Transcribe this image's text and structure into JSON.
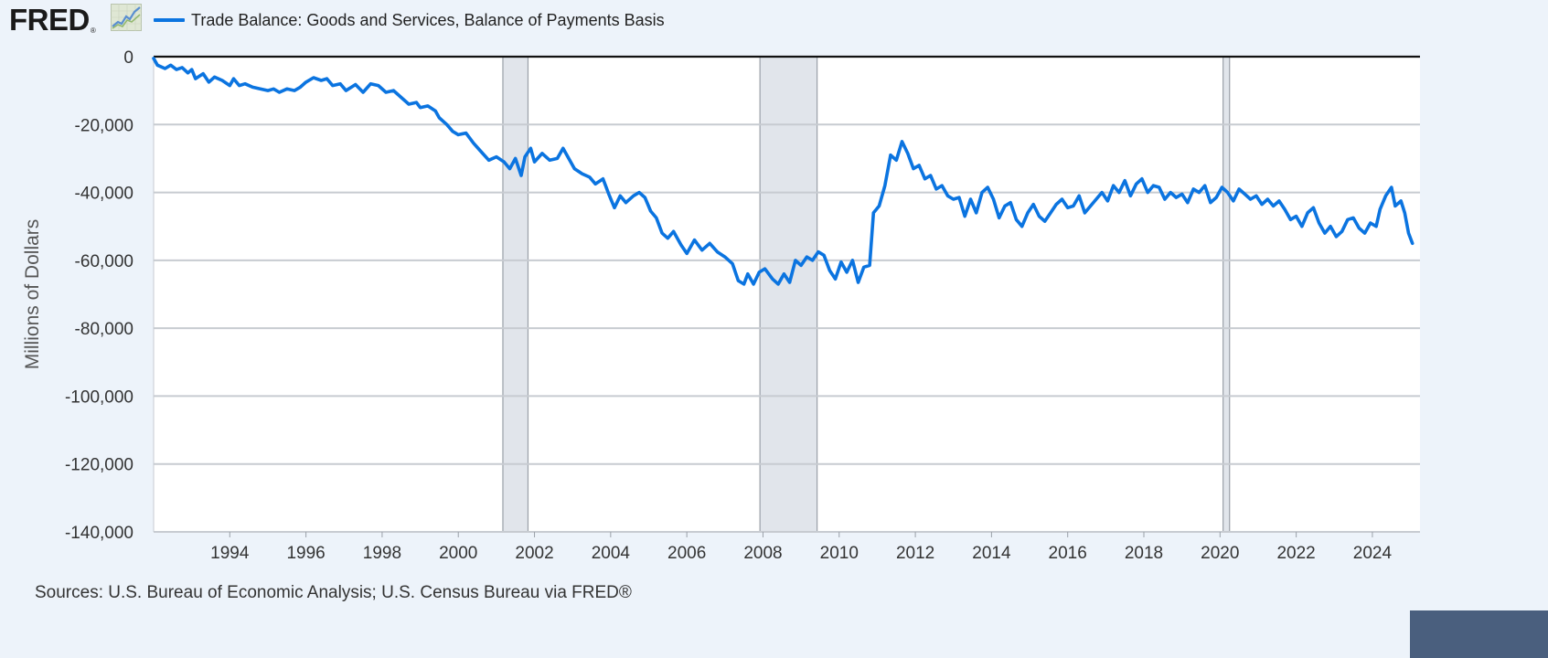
{
  "logo": {
    "text": "FRED",
    "reg": "®",
    "icon": "line-graph-icon"
  },
  "legend": {
    "label": "Trade Balance: Goods and Services, Balance of Payments Basis",
    "color": "#0b74e0"
  },
  "footer": {
    "sources": "Sources: U.S. Bureau of Economic Analysis; U.S. Census Bureau via FRED®"
  },
  "colors": {
    "background": "#edf3fa",
    "plot_background": "#ffffff",
    "series": "#0b74e0",
    "recession": "#e1e5eb",
    "grid": "#c7cbd1",
    "corner_box": "#4a5f7e"
  },
  "chart_data": {
    "type": "line",
    "ylabel": "Millions of Dollars",
    "xlim": [
      1992.0,
      2025.25
    ],
    "ylim": [
      -140000,
      0
    ],
    "x_ticks": [
      1994,
      1996,
      1998,
      2000,
      2002,
      2004,
      2006,
      2008,
      2010,
      2012,
      2014,
      2016,
      2018,
      2020,
      2022,
      2024
    ],
    "y_ticks": [
      0,
      -20000,
      -40000,
      -60000,
      -80000,
      -100000,
      -120000,
      -140000
    ],
    "y_tick_labels": [
      "0",
      "-20,000",
      "-40,000",
      "-60,000",
      "-80,000",
      "-100,000",
      "-120,000",
      "-140,000"
    ],
    "grid": true,
    "legend_position": "top-left",
    "recessions": [
      [
        2001.17,
        2001.83
      ],
      [
        2007.92,
        2009.42
      ],
      [
        2020.08,
        2020.25
      ]
    ],
    "series": [
      {
        "name": "Trade Balance: Goods and Services, Balance of Payments Basis",
        "points": [
          [
            1992.0,
            -500
          ],
          [
            1992.1,
            -2500
          ],
          [
            1992.3,
            -3500
          ],
          [
            1992.45,
            -2500
          ],
          [
            1992.6,
            -3800
          ],
          [
            1992.75,
            -3200
          ],
          [
            1992.9,
            -4800
          ],
          [
            1993.0,
            -3800
          ],
          [
            1993.1,
            -6500
          ],
          [
            1993.3,
            -5000
          ],
          [
            1993.45,
            -7500
          ],
          [
            1993.6,
            -6000
          ],
          [
            1993.8,
            -7000
          ],
          [
            1994.0,
            -8500
          ],
          [
            1994.1,
            -6500
          ],
          [
            1994.25,
            -8500
          ],
          [
            1994.4,
            -8000
          ],
          [
            1994.6,
            -9000
          ],
          [
            1994.8,
            -9500
          ],
          [
            1995.0,
            -10000
          ],
          [
            1995.15,
            -9500
          ],
          [
            1995.3,
            -10500
          ],
          [
            1995.5,
            -9500
          ],
          [
            1995.7,
            -10000
          ],
          [
            1995.85,
            -9000
          ],
          [
            1996.0,
            -7500
          ],
          [
            1996.2,
            -6200
          ],
          [
            1996.4,
            -7000
          ],
          [
            1996.55,
            -6500
          ],
          [
            1996.7,
            -8500
          ],
          [
            1996.9,
            -8000
          ],
          [
            1997.05,
            -10000
          ],
          [
            1997.3,
            -8200
          ],
          [
            1997.5,
            -10500
          ],
          [
            1997.7,
            -8000
          ],
          [
            1997.9,
            -8500
          ],
          [
            1998.1,
            -10500
          ],
          [
            1998.3,
            -10000
          ],
          [
            1998.5,
            -12000
          ],
          [
            1998.7,
            -14000
          ],
          [
            1998.9,
            -13500
          ],
          [
            1999.0,
            -15000
          ],
          [
            1999.2,
            -14500
          ],
          [
            1999.4,
            -16000
          ],
          [
            1999.5,
            -18000
          ],
          [
            1999.7,
            -20000
          ],
          [
            1999.85,
            -22000
          ],
          [
            2000.0,
            -23000
          ],
          [
            2000.2,
            -22500
          ],
          [
            2000.4,
            -25500
          ],
          [
            2000.6,
            -28000
          ],
          [
            2000.8,
            -30500
          ],
          [
            2001.0,
            -29500
          ],
          [
            2001.2,
            -31000
          ],
          [
            2001.35,
            -33000
          ],
          [
            2001.5,
            -30000
          ],
          [
            2001.65,
            -35000
          ],
          [
            2001.75,
            -29500
          ],
          [
            2001.9,
            -27000
          ],
          [
            2002.0,
            -31000
          ],
          [
            2002.2,
            -28500
          ],
          [
            2002.4,
            -30500
          ],
          [
            2002.6,
            -30000
          ],
          [
            2002.75,
            -27000
          ],
          [
            2002.9,
            -30000
          ],
          [
            2003.05,
            -33000
          ],
          [
            2003.25,
            -34500
          ],
          [
            2003.45,
            -35500
          ],
          [
            2003.6,
            -37500
          ],
          [
            2003.8,
            -36000
          ],
          [
            2003.95,
            -40500
          ],
          [
            2004.1,
            -44500
          ],
          [
            2004.25,
            -41000
          ],
          [
            2004.4,
            -43000
          ],
          [
            2004.6,
            -41000
          ],
          [
            2004.75,
            -40000
          ],
          [
            2004.9,
            -41500
          ],
          [
            2005.05,
            -45500
          ],
          [
            2005.2,
            -47500
          ],
          [
            2005.35,
            -52000
          ],
          [
            2005.5,
            -53500
          ],
          [
            2005.65,
            -51500
          ],
          [
            2005.85,
            -55500
          ],
          [
            2006.0,
            -58000
          ],
          [
            2006.2,
            -54000
          ],
          [
            2006.4,
            -57000
          ],
          [
            2006.6,
            -55000
          ],
          [
            2006.8,
            -57500
          ],
          [
            2007.0,
            -59000
          ],
          [
            2007.2,
            -61000
          ],
          [
            2007.35,
            -66000
          ],
          [
            2007.5,
            -67000
          ],
          [
            2007.6,
            -64000
          ],
          [
            2007.75,
            -67000
          ],
          [
            2007.9,
            -63500
          ],
          [
            2008.05,
            -62500
          ],
          [
            2008.25,
            -65500
          ],
          [
            2008.4,
            -67000
          ],
          [
            2008.55,
            -64000
          ],
          [
            2008.7,
            -66500
          ],
          [
            2008.85,
            -60000
          ],
          [
            2009.0,
            -61500
          ],
          [
            2009.15,
            -59000
          ],
          [
            2009.3,
            -60000
          ],
          [
            2009.45,
            -57500
          ],
          [
            2009.6,
            -58500
          ],
          [
            2009.75,
            -63000
          ],
          [
            2009.9,
            -65500
          ],
          [
            2010.05,
            -60500
          ],
          [
            2010.2,
            -63500
          ],
          [
            2010.35,
            -60000
          ],
          [
            2010.5,
            -66500
          ],
          [
            2010.65,
            -62000
          ],
          [
            2010.8,
            -61500
          ],
          [
            2010.9,
            -46000
          ],
          [
            2011.05,
            -44000
          ],
          [
            2011.2,
            -38000
          ],
          [
            2011.35,
            -29000
          ],
          [
            2011.5,
            -30500
          ],
          [
            2011.65,
            -25000
          ],
          [
            2011.8,
            -28500
          ],
          [
            2011.95,
            -33000
          ],
          [
            2012.1,
            -32000
          ],
          [
            2012.25,
            -36000
          ],
          [
            2012.4,
            -35000
          ],
          [
            2012.55,
            -39000
          ],
          [
            2012.7,
            -38000
          ],
          [
            2012.85,
            -41000
          ],
          [
            2013.0,
            -42000
          ],
          [
            2013.15,
            -41500
          ],
          [
            2013.3,
            -47000
          ],
          [
            2013.45,
            -42000
          ],
          [
            2013.6,
            -46000
          ],
          [
            2013.75,
            -40000
          ],
          [
            2013.9,
            -38500
          ],
          [
            2014.05,
            -42000
          ],
          [
            2014.2,
            -47500
          ],
          [
            2014.35,
            -44000
          ],
          [
            2014.5,
            -43000
          ],
          [
            2014.65,
            -48000
          ],
          [
            2014.8,
            -50000
          ],
          [
            2014.95,
            -46000
          ],
          [
            2015.1,
            -43500
          ],
          [
            2015.25,
            -47000
          ],
          [
            2015.4,
            -48500
          ],
          [
            2015.55,
            -46000
          ],
          [
            2015.7,
            -43500
          ],
          [
            2015.85,
            -42000
          ],
          [
            2016.0,
            -44500
          ],
          [
            2016.15,
            -44000
          ],
          [
            2016.3,
            -41000
          ],
          [
            2016.45,
            -46000
          ],
          [
            2016.6,
            -44000
          ],
          [
            2016.75,
            -42000
          ],
          [
            2016.9,
            -40000
          ],
          [
            2017.05,
            -42500
          ],
          [
            2017.2,
            -38000
          ],
          [
            2017.35,
            -40000
          ],
          [
            2017.5,
            -36500
          ],
          [
            2017.65,
            -41000
          ],
          [
            2017.8,
            -37500
          ],
          [
            2017.95,
            -36000
          ],
          [
            2018.1,
            -40000
          ],
          [
            2018.25,
            -38000
          ],
          [
            2018.4,
            -38500
          ],
          [
            2018.55,
            -42000
          ],
          [
            2018.7,
            -40000
          ],
          [
            2018.85,
            -41500
          ],
          [
            2019.0,
            -40500
          ],
          [
            2019.15,
            -43000
          ],
          [
            2019.3,
            -39000
          ],
          [
            2019.45,
            -40000
          ],
          [
            2019.6,
            -38000
          ],
          [
            2019.75,
            -43000
          ],
          [
            2019.9,
            -41500
          ],
          [
            2020.05,
            -38500
          ],
          [
            2020.2,
            -40000
          ],
          [
            2020.35,
            -42500
          ],
          [
            2020.5,
            -39000
          ],
          [
            2020.65,
            -40500
          ],
          [
            2020.8,
            -42000
          ],
          [
            2020.95,
            -41000
          ],
          [
            2021.1,
            -43500
          ],
          [
            2021.25,
            -42000
          ],
          [
            2021.4,
            -44000
          ],
          [
            2021.55,
            -42500
          ],
          [
            2021.7,
            -45000
          ],
          [
            2021.85,
            -48000
          ],
          [
            2022.0,
            -47000
          ],
          [
            2022.15,
            -50000
          ],
          [
            2022.3,
            -46000
          ],
          [
            2022.45,
            -44500
          ],
          [
            2022.6,
            -49000
          ],
          [
            2022.75,
            -52000
          ],
          [
            2022.9,
            -50000
          ],
          [
            2023.05,
            -53000
          ],
          [
            2023.2,
            -51500
          ],
          [
            2023.35,
            -48000
          ],
          [
            2023.5,
            -47500
          ],
          [
            2023.65,
            -50500
          ],
          [
            2023.8,
            -52000
          ],
          [
            2023.95,
            -49000
          ],
          [
            2024.1,
            -50000
          ],
          [
            2024.2,
            -45000
          ],
          [
            2024.35,
            -41000
          ],
          [
            2024.5,
            -38500
          ],
          [
            2024.6,
            -44000
          ],
          [
            2024.75,
            -42500
          ],
          [
            2024.85,
            -46000
          ],
          [
            2024.95,
            -52000
          ],
          [
            2025.05,
            -55000
          ]
        ]
      }
    ]
  }
}
